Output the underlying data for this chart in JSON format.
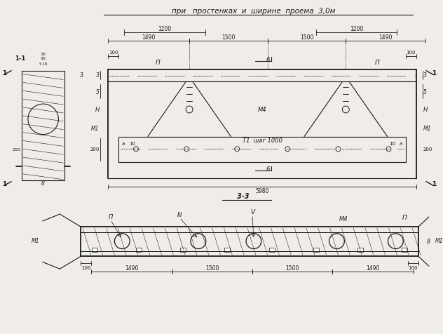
{
  "bg_color": "#f0ede8",
  "line_color": "#1a1a1a",
  "title": "при   простенках  и  ширине  проема  3,0м",
  "label_11": "1-1",
  "label_33": "3-3",
  "dim_1200": "1200",
  "dim_1490": "1490",
  "dim_1500": "1500",
  "dim_5980": "5980",
  "dim_100": "100",
  "dim_200": "200",
  "label_3": "3",
  "label_5": "5",
  "label_M1": "M1",
  "label_H": "H",
  "label_8": "8",
  "label_Pi": "П",
  "label_M4": "M4",
  "label_T1": "T1  шаг 1000",
  "label_6": "6",
  "label_a": "а",
  "label_10": "10",
  "label_1": "1",
  "label_II": "П",
  "label_III": "III",
  "label_V": "V",
  "label_b_bot": "8"
}
